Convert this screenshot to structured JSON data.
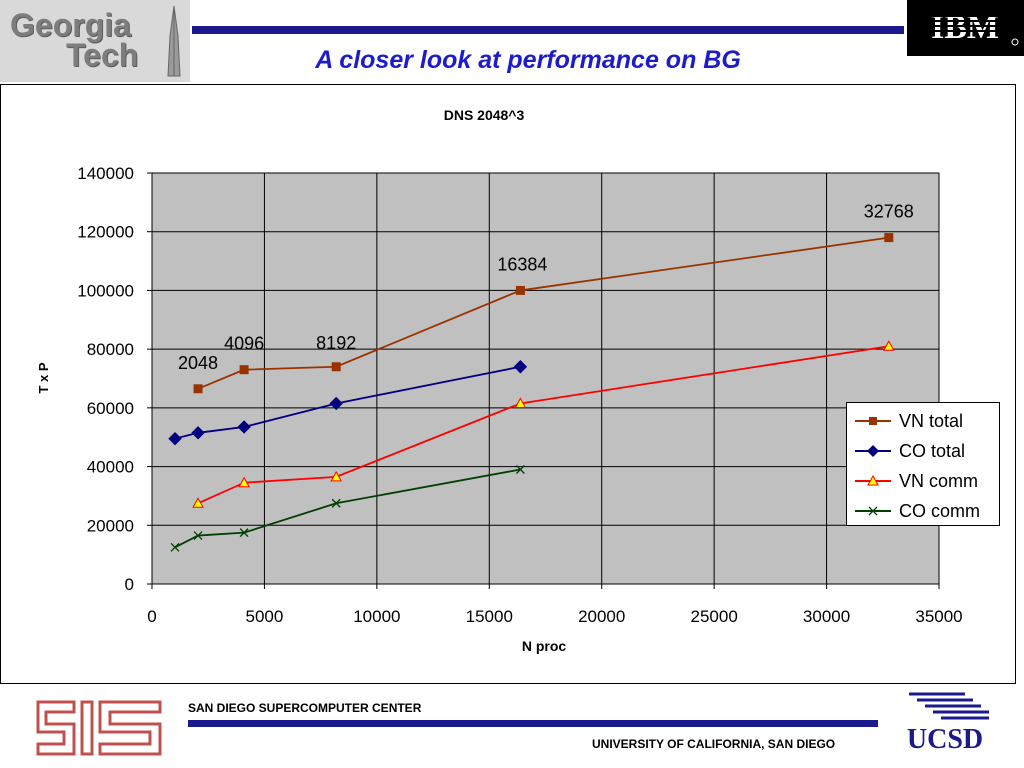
{
  "header": {
    "left_logo_text": [
      "Georgia",
      "Tech"
    ],
    "title": "A closer look at performance on BG",
    "right_logo_text": "IBM"
  },
  "footer": {
    "center_name": "SAN DIEGO SUPERCOMPUTER CENTER",
    "university": "UNIVERSITY OF CALIFORNIA, SAN DIEGO",
    "right_logo_text": "UCSD"
  },
  "colors": {
    "brand_blue": "#1a1a8c",
    "title_blue": "#1c1ccc",
    "plot_bg": "#c0c0c0"
  },
  "chart_data": {
    "type": "line",
    "title": "DNS 2048^3",
    "xlabel": "N proc",
    "ylabel": "T x P",
    "xlim": [
      0,
      35000
    ],
    "ylim": [
      0,
      140000
    ],
    "xticks": [
      0,
      5000,
      10000,
      15000,
      20000,
      25000,
      30000,
      35000
    ],
    "yticks": [
      0,
      20000,
      40000,
      60000,
      80000,
      100000,
      120000,
      140000
    ],
    "grid": true,
    "legend_position": "right",
    "series": [
      {
        "name": "VN total",
        "color": "#993300",
        "marker": "square",
        "x": [
          2048,
          4096,
          8192,
          16384,
          32768
        ],
        "y": [
          66500,
          73000,
          74000,
          100000,
          118000
        ]
      },
      {
        "name": "CO total",
        "color": "#000080",
        "marker": "diamond",
        "x": [
          1024,
          2048,
          4096,
          8192,
          16384
        ],
        "y": [
          49500,
          51500,
          53500,
          61500,
          74000
        ]
      },
      {
        "name": "VN comm",
        "color": "#ff0000",
        "marker": "triangle",
        "x": [
          2048,
          4096,
          8192,
          16384,
          32768
        ],
        "y": [
          27500,
          34500,
          36500,
          61500,
          81000
        ]
      },
      {
        "name": "CO comm",
        "color": "#004000",
        "marker": "x",
        "x": [
          1024,
          2048,
          4096,
          8192,
          16384
        ],
        "y": [
          12500,
          16500,
          17500,
          27500,
          39000
        ]
      }
    ],
    "annotations": [
      {
        "text": "2048",
        "x": 2048,
        "y": 66500
      },
      {
        "text": "4096",
        "x": 4096,
        "y": 73000
      },
      {
        "text": "8192",
        "x": 8192,
        "y": 74000
      },
      {
        "text": "16384",
        "x": 16384,
        "y": 100000
      },
      {
        "text": "32768",
        "x": 32768,
        "y": 118000
      }
    ]
  }
}
